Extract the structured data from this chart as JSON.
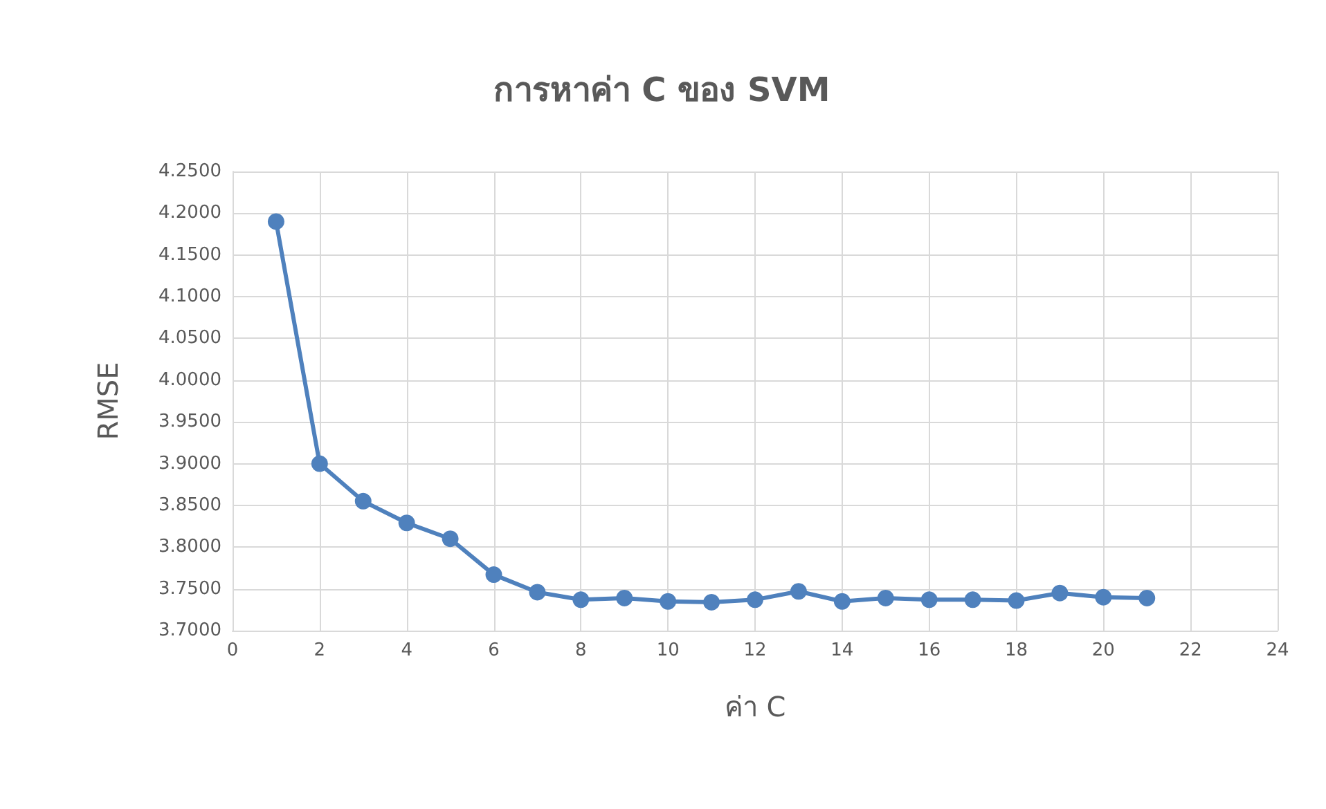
{
  "chart_data": {
    "type": "line",
    "title": "การหาค่า C ของ SVM",
    "xlabel": "ค่า C",
    "ylabel": "RMSE",
    "x": [
      1,
      2,
      3,
      4,
      5,
      6,
      7,
      8,
      9,
      10,
      11,
      12,
      13,
      14,
      15,
      16,
      17,
      18,
      19,
      20,
      21
    ],
    "series": [
      {
        "color": "#4f81bd",
        "values": [
          4.19,
          3.9,
          3.855,
          3.829,
          3.81,
          3.767,
          3.746,
          3.737,
          3.739,
          3.735,
          3.734,
          3.737,
          3.747,
          3.735,
          3.739,
          3.737,
          3.737,
          3.736,
          3.745,
          3.74,
          3.739
        ]
      }
    ],
    "xlim": [
      0,
      24
    ],
    "xticks": [
      0,
      2,
      4,
      6,
      8,
      10,
      12,
      14,
      16,
      18,
      20,
      22,
      24
    ],
    "ylim": [
      3.7,
      4.25
    ],
    "yticks": [
      {
        "value": 3.7,
        "label": "3.7000"
      },
      {
        "value": 3.75,
        "label": "3.7500"
      },
      {
        "value": 3.8,
        "label": "3.8000"
      },
      {
        "value": 3.85,
        "label": "3.8500"
      },
      {
        "value": 3.9,
        "label": "3.9000"
      },
      {
        "value": 3.95,
        "label": "3.9500"
      },
      {
        "value": 4.0,
        "label": "4.0000"
      },
      {
        "value": 4.05,
        "label": "4.0500"
      },
      {
        "value": 4.1,
        "label": "4.1000"
      },
      {
        "value": 4.15,
        "label": "4.1500"
      },
      {
        "value": 4.2,
        "label": "4.2000"
      },
      {
        "value": 4.25,
        "label": "4.2500"
      }
    ],
    "grid": true,
    "marker": "circle",
    "line_style": "solid"
  }
}
